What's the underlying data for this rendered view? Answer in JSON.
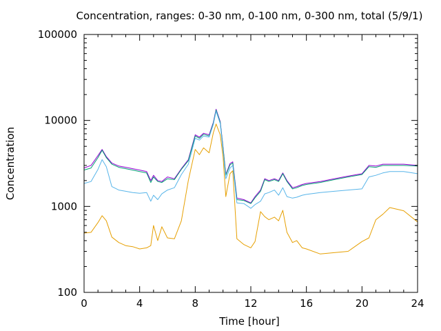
{
  "chart_data": {
    "type": "line",
    "title": "Concentration, ranges: 0-30 nm, 0-100 nm, 0-300 nm, total (5/9/1)",
    "xlabel": "Time [hour]",
    "ylabel": "Concentration",
    "xlim": [
      0,
      24
    ],
    "ylim": [
      100,
      100000
    ],
    "yscale": "log",
    "grid": false,
    "legend": "none",
    "xticks": [
      "0",
      "4",
      "8",
      "12",
      "16",
      "20",
      "24"
    ],
    "yticks": [
      "100",
      "1000",
      "10000",
      "100000"
    ],
    "x": [
      0,
      0.5,
      1.0,
      1.3,
      1.6,
      2.0,
      2.5,
      3.0,
      3.5,
      4.0,
      4.5,
      4.8,
      5.0,
      5.3,
      5.6,
      6.0,
      6.5,
      7.0,
      7.5,
      8.0,
      8.3,
      8.6,
      9.0,
      9.3,
      9.5,
      9.8,
      10.0,
      10.2,
      10.5,
      10.7,
      11.0,
      11.5,
      12.0,
      12.3,
      12.7,
      13.0,
      13.3,
      13.7,
      14.0,
      14.3,
      14.6,
      15.0,
      15.3,
      15.7,
      16.0,
      17.0,
      18.0,
      19.0,
      20.0,
      20.5,
      21.0,
      21.5,
      22.0,
      23.0,
      24.0
    ],
    "series": [
      {
        "color": "#9400d3",
        "values": [
          2800,
          3000,
          3900,
          4600,
          3800,
          3200,
          2950,
          2850,
          2750,
          2650,
          2550,
          2000,
          2300,
          2000,
          1950,
          2200,
          2100,
          2750,
          3500,
          6800,
          6400,
          7100,
          6800,
          9500,
          13500,
          9700,
          4900,
          2350,
          3150,
          3300,
          1250,
          1200,
          1100,
          1300,
          1550,
          2100,
          2000,
          2100,
          2000,
          2450,
          2000,
          1650,
          1700,
          1800,
          1850,
          1950,
          2100,
          2250,
          2400,
          3000,
          2950,
          3100,
          3100,
          3100,
          3000
        ]
      },
      {
        "color": "#009e73",
        "values": [
          2650,
          2800,
          3700,
          4500,
          3700,
          3100,
          2850,
          2750,
          2650,
          2550,
          2450,
          1900,
          2200,
          1950,
          1900,
          2100,
          2050,
          2700,
          3400,
          6600,
          6200,
          6900,
          6600,
          9300,
          13200,
          9500,
          4800,
          2300,
          3050,
          3200,
          1200,
          1170,
          1080,
          1260,
          1500,
          2050,
          1950,
          2050,
          1950,
          2400,
          1950,
          1600,
          1650,
          1750,
          1800,
          1900,
          2050,
          2200,
          2350,
          2900,
          2850,
          3000,
          3000,
          3000,
          2950
        ]
      },
      {
        "color": "#56b4e9",
        "values": [
          1850,
          1950,
          2700,
          3500,
          2900,
          1700,
          1550,
          1500,
          1450,
          1420,
          1450,
          1150,
          1350,
          1200,
          1400,
          1550,
          1650,
          2350,
          3100,
          6200,
          5900,
          6600,
          6400,
          9000,
          12800,
          9200,
          4500,
          2100,
          2800,
          3000,
          1100,
          1080,
          950,
          1050,
          1150,
          1400,
          1450,
          1550,
          1350,
          1650,
          1300,
          1250,
          1280,
          1350,
          1380,
          1450,
          1500,
          1550,
          1600,
          2200,
          2300,
          2450,
          2550,
          2550,
          2400
        ]
      },
      {
        "color": "#e69f00",
        "values": [
          490,
          500,
          650,
          780,
          680,
          440,
          380,
          350,
          340,
          320,
          330,
          350,
          600,
          400,
          580,
          430,
          420,
          680,
          2000,
          4600,
          4000,
          4800,
          4200,
          7200,
          9100,
          6800,
          3800,
          1300,
          2400,
          2600,
          420,
          360,
          330,
          390,
          870,
          760,
          700,
          750,
          680,
          900,
          500,
          380,
          400,
          330,
          320,
          280,
          290,
          300,
          390,
          430,
          700,
          810,
          970,
          890,
          660
        ]
      }
    ]
  }
}
